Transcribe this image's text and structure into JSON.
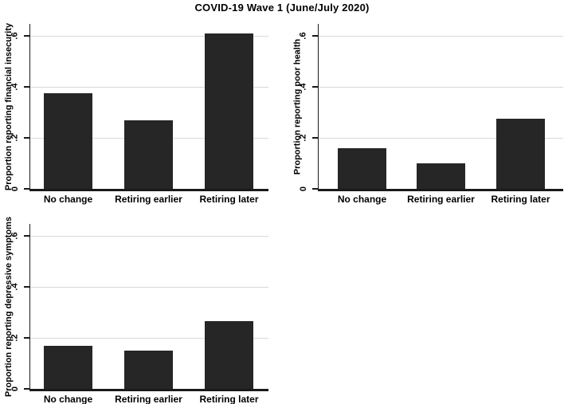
{
  "figure": {
    "title": "COVID-19 Wave 1 (June/July 2020)"
  },
  "colors": {
    "bar": "#262626",
    "grid": "#d9d9d9",
    "axis": "#1a1a1a",
    "background": "#ffffff"
  },
  "chart_data": [
    {
      "type": "bar",
      "position": "top-left",
      "ylabel": "Proportion reporting financial insecurity",
      "xlabel": "",
      "categories": [
        "No change",
        "Retiring earlier",
        "Retiring later"
      ],
      "values": [
        0.375,
        0.27,
        0.61
      ],
      "yticks": [
        0,
        0.2,
        0.4,
        0.6
      ],
      "ytick_labels": [
        "0",
        ".2",
        ".4",
        ".6"
      ],
      "ylim": [
        0,
        0.65
      ],
      "grid": true,
      "legend": "none"
    },
    {
      "type": "bar",
      "position": "top-right",
      "ylabel": "Proportion reporting poor health",
      "xlabel": "",
      "categories": [
        "No change",
        "Retiring earlier",
        "Retiring later"
      ],
      "values": [
        0.16,
        0.1,
        0.275
      ],
      "yticks": [
        0,
        0.2,
        0.4,
        0.6
      ],
      "ytick_labels": [
        "0",
        ".2",
        ".4",
        ".6"
      ],
      "ylim": [
        0,
        0.65
      ],
      "grid": true,
      "legend": "none"
    },
    {
      "type": "bar",
      "position": "bottom-left",
      "ylabel": "Proportion reporting depressive symptoms",
      "xlabel": "",
      "categories": [
        "No change",
        "Retiring earlier",
        "Retiring later"
      ],
      "values": [
        0.17,
        0.15,
        0.265
      ],
      "yticks": [
        0,
        0.2,
        0.4,
        0.6
      ],
      "ytick_labels": [
        "0",
        ".2",
        ".4",
        ".6"
      ],
      "ylim": [
        0,
        0.65
      ],
      "grid": true,
      "legend": "none"
    }
  ]
}
